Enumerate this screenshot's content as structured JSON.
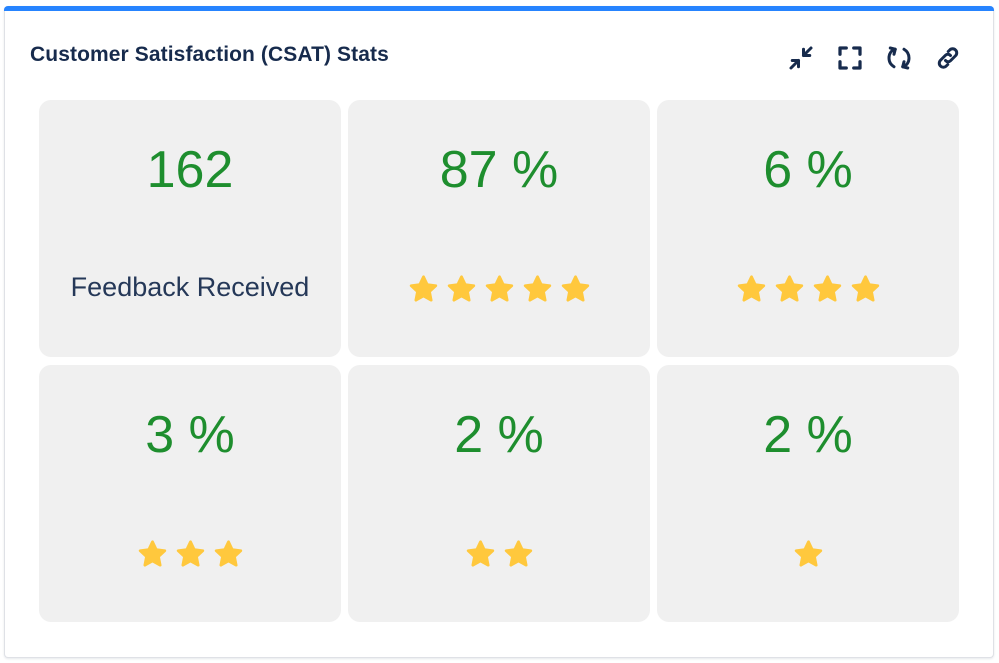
{
  "gadget": {
    "title": "Customer Satisfaction (CSAT) Stats",
    "accent_color": "#2684ff",
    "actions": [
      {
        "name": "minimize-icon",
        "label": "Minimize"
      },
      {
        "name": "fullscreen-icon",
        "label": "Full screen"
      },
      {
        "name": "refresh-icon",
        "label": "Refresh"
      },
      {
        "name": "link-icon",
        "label": "Link"
      }
    ]
  },
  "stats": {
    "feedback": {
      "value": "162",
      "label": "Feedback Received"
    },
    "five_star": {
      "value": "87 %",
      "stars": 5
    },
    "four_star": {
      "value": "6 %",
      "stars": 4
    },
    "three_star": {
      "value": "3 %",
      "stars": 3
    },
    "two_star": {
      "value": "2 %",
      "stars": 2
    },
    "one_star": {
      "value": "2 %",
      "stars": 1
    }
  },
  "colors": {
    "value_text": "#1e8e2e",
    "star": "#ffc83d",
    "card_bg": "#f0f0f0",
    "title_text": "#172b4d"
  }
}
